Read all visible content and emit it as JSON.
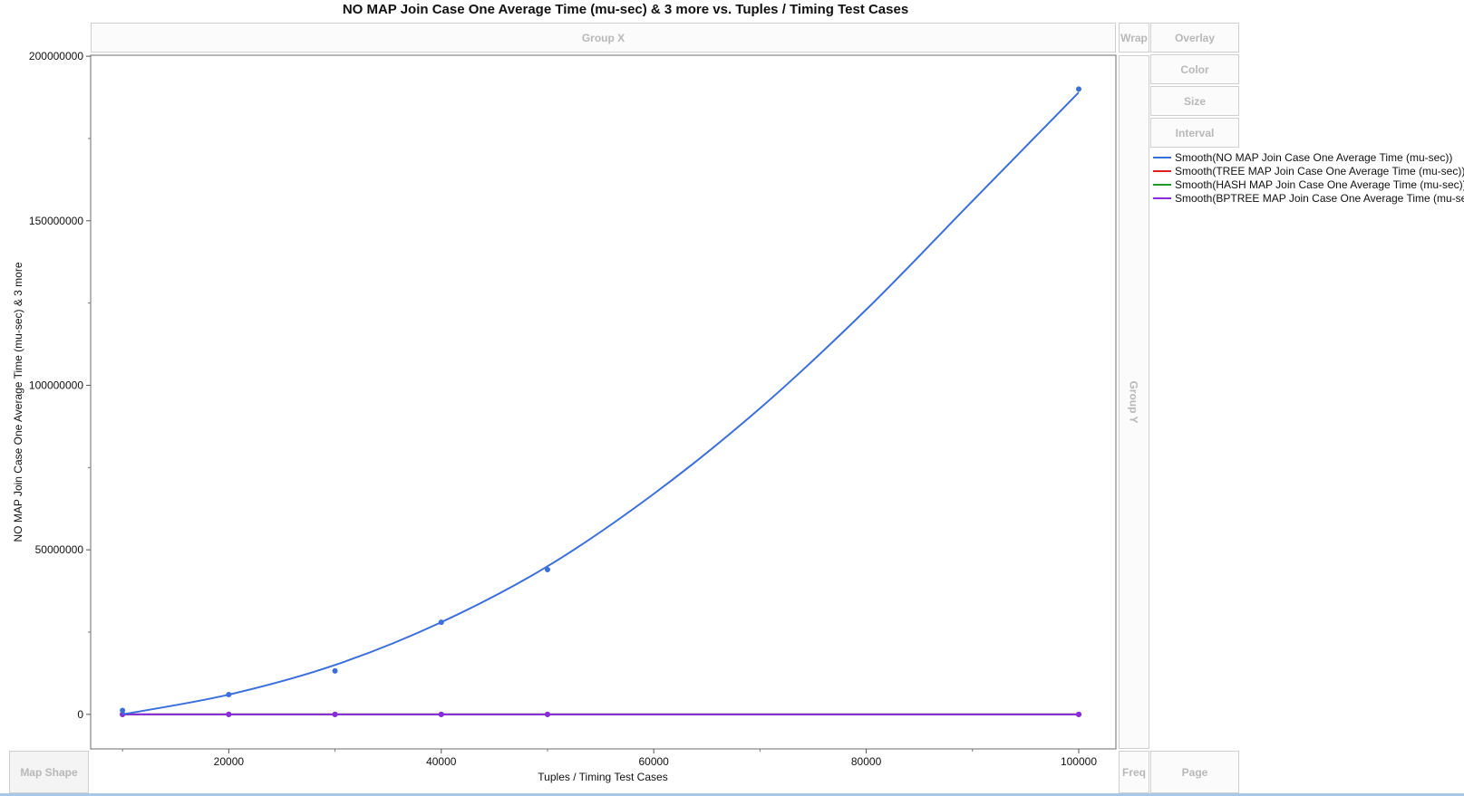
{
  "chart_data": {
    "type": "line",
    "title": "NO MAP Join Case One Average Time (mu-sec) & 3 more vs. Tuples / Timing Test Cases",
    "xlabel": "Tuples / Timing Test Cases",
    "ylabel": "NO MAP Join Case One Average Time (mu-sec) & 3 more",
    "xlim": [
      7000,
      103500
    ],
    "ylim": [
      -10500000,
      200300000
    ],
    "x_ticks": [
      20000,
      40000,
      60000,
      80000,
      100000
    ],
    "y_ticks": [
      0,
      50000000,
      100000000,
      150000000,
      200000000
    ],
    "x": [
      10000,
      20000,
      30000,
      40000,
      50000,
      100000
    ],
    "series": [
      {
        "name": "Smooth(NO MAP Join Case One Average Time (mu-sec))",
        "color": "#3a6fdc",
        "points": [
          1200000,
          6000000,
          13200000,
          28000000,
          44000000,
          190000000
        ],
        "smooth": [
          [
            10000,
            0
          ],
          [
            20000,
            6000000
          ],
          [
            30000,
            15000000
          ],
          [
            40000,
            28000000
          ],
          [
            50000,
            45000000
          ],
          [
            60000,
            67000000
          ],
          [
            70000,
            93000000
          ],
          [
            80000,
            123000000
          ],
          [
            90000,
            156000000
          ],
          [
            100000,
            189000000
          ]
        ]
      },
      {
        "name": "Smooth(TREE MAP Join Case One Average Time (mu-sec))",
        "color": "#e02020",
        "points": [
          0,
          0,
          0,
          0,
          0,
          0
        ],
        "smooth": [
          [
            10000,
            0
          ],
          [
            100000,
            0
          ]
        ]
      },
      {
        "name": "Smooth(HASH MAP Join Case One Average Time (mu-sec))",
        "color": "#1c9a2a",
        "points": [
          0,
          0,
          0,
          0,
          0,
          0
        ],
        "smooth": [
          [
            10000,
            0
          ],
          [
            100000,
            0
          ]
        ]
      },
      {
        "name": "Smooth(BPTREE MAP Join Case One Average Time (mu-sec))",
        "color": "#8a2be2",
        "points": [
          0,
          0,
          0,
          0,
          0,
          0
        ],
        "smooth": [
          [
            10000,
            0
          ],
          [
            100000,
            0
          ]
        ]
      }
    ]
  },
  "zones": {
    "group_x": "Group X",
    "wrap": "Wrap",
    "group_y": "Group Y",
    "overlay": "Overlay",
    "color": "Color",
    "size": "Size",
    "interval": "Interval",
    "freq": "Freq",
    "page": "Page",
    "map_shape": "Map Shape"
  }
}
